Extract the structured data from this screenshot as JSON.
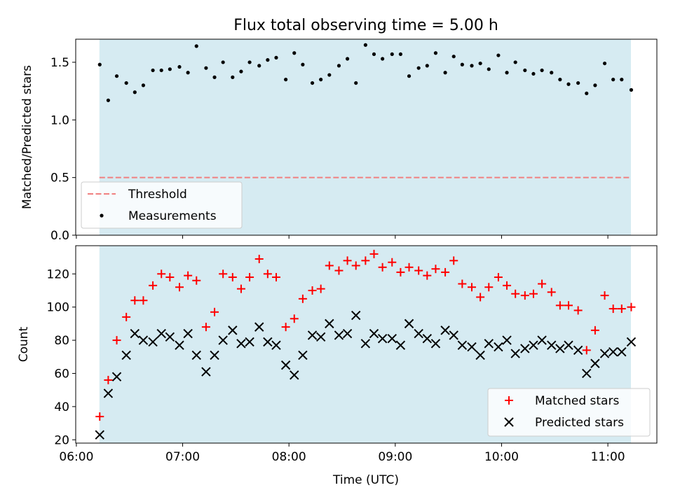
{
  "chart_data": [
    {
      "type": "scatter",
      "title": "Flux total observing time = 5.00 h",
      "xlabel": "",
      "ylabel": "Matched/Predicted stars",
      "ylim": [
        0,
        1.7
      ],
      "yticks": [
        "0.0",
        "0.5",
        "1.0",
        "1.5"
      ],
      "xrange_hours": [
        5.994,
        11.461
      ],
      "observing_window_hours": [
        6.217,
        11.217
      ],
      "threshold": 0.5,
      "legend": {
        "placement": "bottom-left",
        "entries": [
          "Threshold",
          "Measurements"
        ]
      },
      "series": [
        {
          "name": "Measurements",
          "color": "#000000",
          "x": [
            6.22,
            6.3,
            6.38,
            6.47,
            6.55,
            6.63,
            6.72,
            6.8,
            6.88,
            6.97,
            7.05,
            7.13,
            7.22,
            7.3,
            7.38,
            7.47,
            7.55,
            7.63,
            7.72,
            7.8,
            7.88,
            7.97,
            8.05,
            8.13,
            8.22,
            8.3,
            8.38,
            8.47,
            8.55,
            8.63,
            8.72,
            8.8,
            8.88,
            8.97,
            9.05,
            9.13,
            9.22,
            9.3,
            9.38,
            9.47,
            9.55,
            9.63,
            9.72,
            9.8,
            9.88,
            9.97,
            10.05,
            10.13,
            10.22,
            10.3,
            10.38,
            10.47,
            10.55,
            10.63,
            10.72,
            10.8,
            10.88,
            10.97,
            11.05,
            11.13,
            11.22
          ],
          "y": [
            1.48,
            1.17,
            1.38,
            1.32,
            1.24,
            1.3,
            1.43,
            1.43,
            1.44,
            1.46,
            1.41,
            1.64,
            1.45,
            1.37,
            1.5,
            1.37,
            1.42,
            1.5,
            1.47,
            1.52,
            1.54,
            1.35,
            1.58,
            1.48,
            1.32,
            1.35,
            1.39,
            1.47,
            1.53,
            1.32,
            1.65,
            1.57,
            1.53,
            1.57,
            1.57,
            1.38,
            1.45,
            1.47,
            1.58,
            1.41,
            1.55,
            1.48,
            1.47,
            1.49,
            1.44,
            1.56,
            1.41,
            1.5,
            1.43,
            1.4,
            1.43,
            1.41,
            1.35,
            1.31,
            1.32,
            1.23,
            1.3,
            1.49,
            1.35,
            1.35,
            1.26
          ]
        }
      ]
    },
    {
      "type": "scatter",
      "title": "",
      "xlabel": "Time (UTC)",
      "ylabel": "Count",
      "ylim": [
        18,
        137
      ],
      "yticks": [
        "20",
        "40",
        "60",
        "80",
        "100",
        "120"
      ],
      "xticks": [
        "06:00",
        "07:00",
        "08:00",
        "09:00",
        "10:00",
        "11:00"
      ],
      "xrange_hours": [
        5.994,
        11.461
      ],
      "observing_window_hours": [
        6.217,
        11.217
      ],
      "legend": {
        "placement": "bottom-right",
        "entries": [
          "Matched stars",
          "Predicted stars"
        ]
      },
      "x": [
        6.22,
        6.3,
        6.38,
        6.47,
        6.55,
        6.63,
        6.72,
        6.8,
        6.88,
        6.97,
        7.05,
        7.13,
        7.22,
        7.3,
        7.38,
        7.47,
        7.55,
        7.63,
        7.72,
        7.8,
        7.88,
        7.97,
        8.05,
        8.13,
        8.22,
        8.3,
        8.38,
        8.47,
        8.55,
        8.63,
        8.72,
        8.8,
        8.88,
        8.97,
        9.05,
        9.13,
        9.22,
        9.3,
        9.38,
        9.47,
        9.55,
        9.63,
        9.72,
        9.8,
        9.88,
        9.97,
        10.05,
        10.13,
        10.22,
        10.3,
        10.38,
        10.47,
        10.55,
        10.63,
        10.72,
        10.8,
        10.88,
        10.97,
        11.05,
        11.13,
        11.22
      ],
      "series": [
        {
          "name": "Matched stars",
          "color": "#ff0000",
          "marker": "+",
          "values": [
            34,
            56,
            80,
            94,
            104,
            104,
            113,
            120,
            118,
            112,
            119,
            116,
            88,
            97,
            120,
            118,
            111,
            118,
            129,
            120,
            118,
            88,
            93,
            105,
            110,
            111,
            125,
            122,
            128,
            125,
            128,
            132,
            124,
            127,
            121,
            124,
            122,
            119,
            123,
            121,
            128,
            114,
            112,
            106,
            112,
            118,
            113,
            108,
            107,
            108,
            114,
            109,
            101,
            101,
            98,
            74,
            86,
            107,
            99,
            99,
            100
          ]
        },
        {
          "name": "Predicted stars",
          "color": "#000000",
          "marker": "x",
          "values": [
            23,
            48,
            58,
            71,
            84,
            80,
            79,
            84,
            82,
            77,
            84,
            71,
            61,
            71,
            80,
            86,
            78,
            79,
            88,
            79,
            77,
            65,
            59,
            71,
            83,
            82,
            90,
            83,
            84,
            95,
            78,
            84,
            81,
            81,
            77,
            90,
            84,
            81,
            78,
            86,
            83,
            77,
            76,
            71,
            78,
            76,
            80,
            72,
            75,
            77,
            80,
            77,
            75,
            77,
            74,
            60,
            66,
            72,
            73,
            73,
            79
          ]
        }
      ]
    }
  ],
  "colors": {
    "window_fill": "#add8e6",
    "threshold": "#f08080",
    "matched": "#ff0000",
    "predicted": "#000000"
  }
}
